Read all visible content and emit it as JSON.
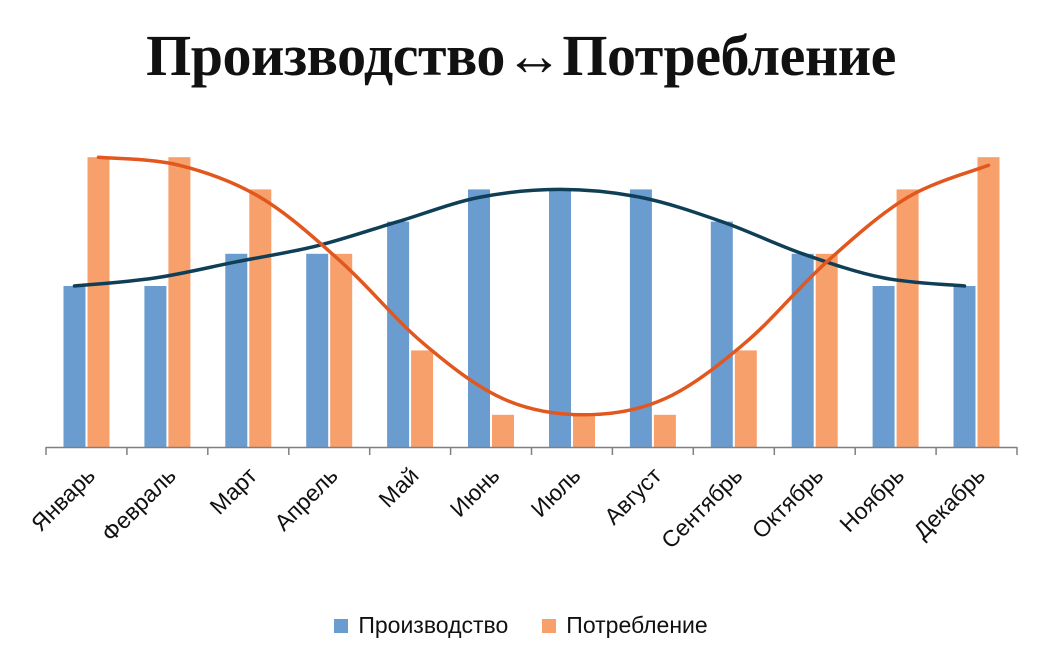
{
  "chart_data": {
    "type": "bar",
    "title": "Производство↔Потребление",
    "categories": [
      "Январь",
      "Февраль",
      "Март",
      "Апрель",
      "Май",
      "Июнь",
      "Июль",
      "Август",
      "Сентябрь",
      "Октябрь",
      "Ноябрь",
      "Декабрь"
    ],
    "series": [
      {
        "name": "Производство",
        "color": "#6a9cd0",
        "values": [
          5,
          5,
          6,
          6,
          7,
          8,
          8,
          8,
          7,
          6,
          5,
          5
        ]
      },
      {
        "name": "Потребление",
        "color": "#f7a06c",
        "values": [
          9,
          9,
          8,
          6,
          3,
          1,
          1,
          1,
          3,
          6,
          8,
          9
        ]
      }
    ],
    "trendlines": [
      {
        "series": "Производство",
        "color": "#0f3f57",
        "kind": "polynomial"
      },
      {
        "series": "Потребление",
        "color": "#e2571e",
        "kind": "polynomial"
      }
    ],
    "ylim": [
      0,
      10
    ],
    "grid": false,
    "legend_position": "bottom"
  }
}
